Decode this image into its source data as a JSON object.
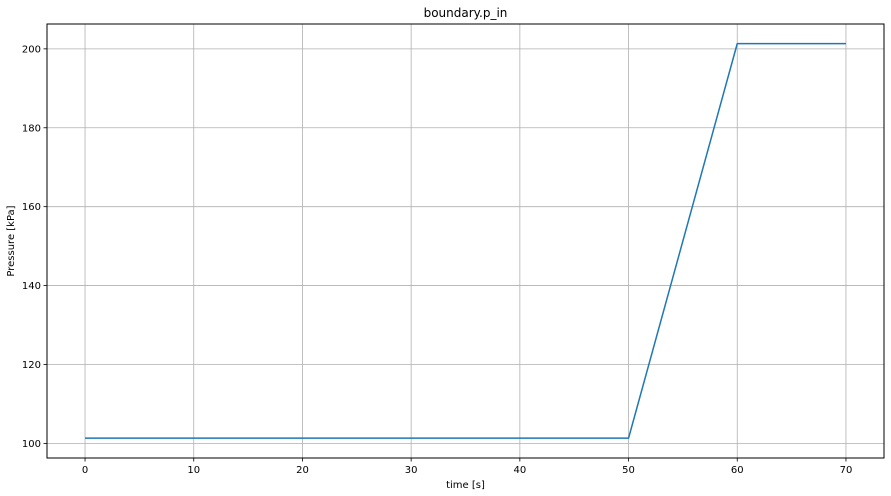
{
  "chart_data": {
    "type": "line",
    "title": "boundary.p_in",
    "xlabel": "time [s]",
    "ylabel": "Pressure [kPa]",
    "xlim": [
      -3.5,
      73.5
    ],
    "ylim": [
      96.3,
      206.3
    ],
    "xticks": [
      0,
      10,
      20,
      30,
      40,
      50,
      60,
      70
    ],
    "yticks": [
      100,
      120,
      140,
      160,
      180,
      200
    ],
    "grid": true,
    "colors": {
      "series": "#1f77b4",
      "grid": "#b0b0b0",
      "axes": "#000000"
    },
    "series": [
      {
        "x": [
          0,
          50,
          60,
          70
        ],
        "y": [
          101.325,
          101.325,
          201.325,
          201.325
        ]
      }
    ]
  }
}
